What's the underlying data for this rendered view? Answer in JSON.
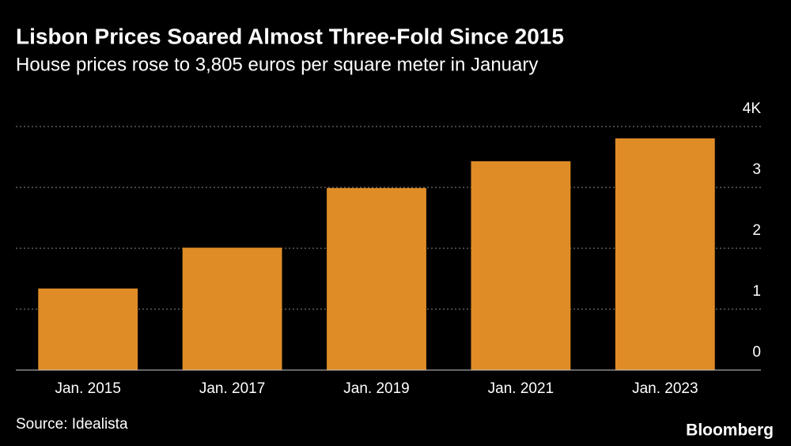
{
  "chart_data": {
    "type": "bar",
    "title": "Lisbon Prices Soared Almost Three-Fold Since 2015",
    "subtitle": "House prices rose to 3,805 euros per square meter in January",
    "categories": [
      "Jan. 2015",
      "Jan. 2017",
      "Jan. 2019",
      "Jan. 2021",
      "Jan. 2023"
    ],
    "values": [
      1.34,
      2.01,
      2.99,
      3.43,
      3.805
    ],
    "color": "#df8c27",
    "ylim": [
      0,
      4
    ],
    "yticks": [
      0,
      1,
      2,
      3,
      {
        "value": 4,
        "label": "4K"
      }
    ],
    "grid": true,
    "source": "Source: Idealista",
    "logo": "Bloomberg"
  }
}
